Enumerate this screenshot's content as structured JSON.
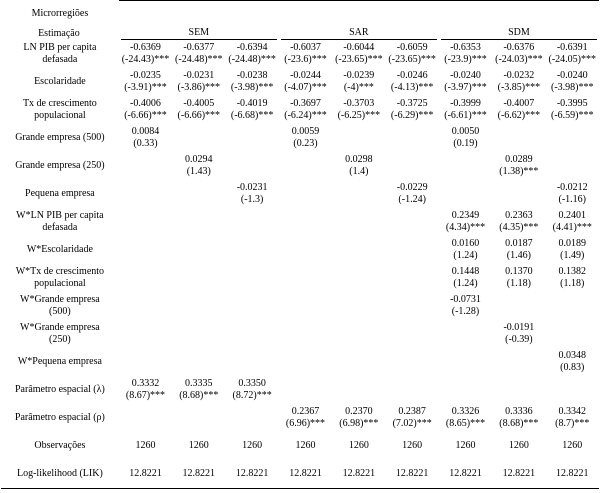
{
  "header": {
    "stub": [
      "Microrregiões",
      "Estimação"
    ],
    "groups": [
      "SEM",
      "SAR",
      "SDM"
    ]
  },
  "rows": [
    {
      "label": [
        "LN PIB per capita",
        "defasada"
      ],
      "cells": [
        [
          "-0.6369",
          "(-24.43)***"
        ],
        [
          "-0.6377",
          "(-24.48)***"
        ],
        [
          "-0.6394",
          "(-24.48)***"
        ],
        [
          "-0.6037",
          "(-23.6)***"
        ],
        [
          "-0.6044",
          "(-23.65)***"
        ],
        [
          "-0.6059",
          "(-23.65)***"
        ],
        [
          "-0.6353",
          "(-23.9)***"
        ],
        [
          "-0.6376",
          "(-24.03)***"
        ],
        [
          "-0.6391",
          "(-24.05)***"
        ]
      ]
    },
    {
      "label": [
        "Escolaridade"
      ],
      "cells": [
        [
          "-0.0235",
          "(-3.91)***"
        ],
        [
          "-0.0231",
          "(-3.86)***"
        ],
        [
          "-0.0238",
          "(-3.98)***"
        ],
        [
          "-0.0244",
          "(-4.07)***"
        ],
        [
          "-0.0239",
          "(-4)***"
        ],
        [
          "-0.0246",
          "(-4.13)***"
        ],
        [
          "-0.0240",
          "(-3.97)***"
        ],
        [
          "-0.0232",
          "(-3.85)***"
        ],
        [
          "-0.0240",
          "(-3.98)***"
        ]
      ]
    },
    {
      "label": [
        "Tx de crescimento",
        "populacional"
      ],
      "cells": [
        [
          "-0.4006",
          "(-6.66)***"
        ],
        [
          "-0.4005",
          "(-6.66)***"
        ],
        [
          "-0.4019",
          "(-6.68)***"
        ],
        [
          "-0.3697",
          "(-6.24)***"
        ],
        [
          "-0.3703",
          "(-6.25)***"
        ],
        [
          "-0.3725",
          "(-6.29)***"
        ],
        [
          "-0.3999",
          "(-6.61)***"
        ],
        [
          "-0.4007",
          "(-6.62)***"
        ],
        [
          "-0.3995",
          "(-6.59)***"
        ]
      ]
    },
    {
      "label": [
        "Grande empresa (500)"
      ],
      "cells": [
        [
          "0.0084",
          "(0.33)"
        ],
        null,
        null,
        [
          "0.0059",
          "(0.23)"
        ],
        null,
        null,
        [
          "0.0050",
          "(0.19)"
        ],
        null,
        null
      ]
    },
    {
      "label": [
        "Grande empresa (250)"
      ],
      "cells": [
        null,
        [
          "0.0294",
          "(1.43)"
        ],
        null,
        null,
        [
          "0.0298",
          "(1.4)"
        ],
        null,
        null,
        [
          "0.0289",
          "(1.38)***"
        ],
        null
      ]
    },
    {
      "label": [
        "Pequena empresa"
      ],
      "cells": [
        null,
        null,
        [
          "-0.0231",
          "(-1.3)"
        ],
        null,
        null,
        [
          "-0.0229",
          "(-1.24)"
        ],
        null,
        null,
        [
          "-0.0212",
          "(-1.16)"
        ]
      ]
    },
    {
      "label": [
        "W*LN PIB per capita",
        "defasada"
      ],
      "cells": [
        null,
        null,
        null,
        null,
        null,
        null,
        [
          "0.2349",
          "(4.34)***"
        ],
        [
          "0.2363",
          "(4.35)***"
        ],
        [
          "0.2401",
          "(4.41)***"
        ]
      ]
    },
    {
      "label": [
        "W*Escolaridade"
      ],
      "cells": [
        null,
        null,
        null,
        null,
        null,
        null,
        [
          "0.0160",
          "(1.24)"
        ],
        [
          "0.0187",
          "(1.46)"
        ],
        [
          "0.0189",
          "(1.49)"
        ]
      ]
    },
    {
      "label": [
        "W*Tx de crescimento",
        "populacional"
      ],
      "cells": [
        null,
        null,
        null,
        null,
        null,
        null,
        [
          "0.1448",
          "(1.24)"
        ],
        [
          "0.1370",
          "(1.18)"
        ],
        [
          "0.1382",
          "(1.18)"
        ]
      ]
    },
    {
      "label": [
        "W*Grande empresa",
        "(500)"
      ],
      "cells": [
        null,
        null,
        null,
        null,
        null,
        null,
        [
          "-0.0731",
          "(-1.28)"
        ],
        null,
        null
      ]
    },
    {
      "label": [
        "W*Grande empresa",
        "(250)"
      ],
      "cells": [
        null,
        null,
        null,
        null,
        null,
        null,
        null,
        [
          "-0.0191",
          "(-0.39)"
        ],
        null
      ]
    },
    {
      "label": [
        "W*Pequena empresa"
      ],
      "cells": [
        null,
        null,
        null,
        null,
        null,
        null,
        null,
        null,
        [
          "0.0348",
          "(0.83)"
        ]
      ]
    },
    {
      "label": [
        "Parâmetro espacial (λ)"
      ],
      "cells": [
        [
          "0.3332",
          "(8.67)***"
        ],
        [
          "0.3335",
          "(8.68)***"
        ],
        [
          "0.3350",
          "(8.72)***"
        ],
        null,
        null,
        null,
        null,
        null,
        null
      ]
    },
    {
      "label": [
        "Parâmetro espacial (ρ)"
      ],
      "cells": [
        null,
        null,
        null,
        [
          "0.2367",
          "(6.96)***"
        ],
        [
          "0.2370",
          "(6.98)***"
        ],
        [
          "0.2387",
          "(7.02)***"
        ],
        [
          "0.3326",
          "(8.65)***"
        ],
        [
          "0.3336",
          "(8.68)***"
        ],
        [
          "0.3342",
          "(8.7)***"
        ]
      ]
    },
    {
      "label": [
        "Observações"
      ],
      "cells": [
        [
          "1260"
        ],
        [
          "1260"
        ],
        [
          "1260"
        ],
        [
          "1260"
        ],
        [
          "1260"
        ],
        [
          "1260"
        ],
        [
          "1260"
        ],
        [
          "1260"
        ],
        [
          "1260"
        ]
      ]
    },
    {
      "label": [
        "Log-likelihood (LIK)"
      ],
      "cells": [
        [
          "12.8221"
        ],
        [
          "12.8221"
        ],
        [
          "12.8221"
        ],
        [
          "12.8221"
        ],
        [
          "12.8221"
        ],
        [
          "12.8221"
        ],
        [
          "12.8221"
        ],
        [
          "12.8221"
        ],
        [
          "12.8221"
        ]
      ]
    }
  ]
}
